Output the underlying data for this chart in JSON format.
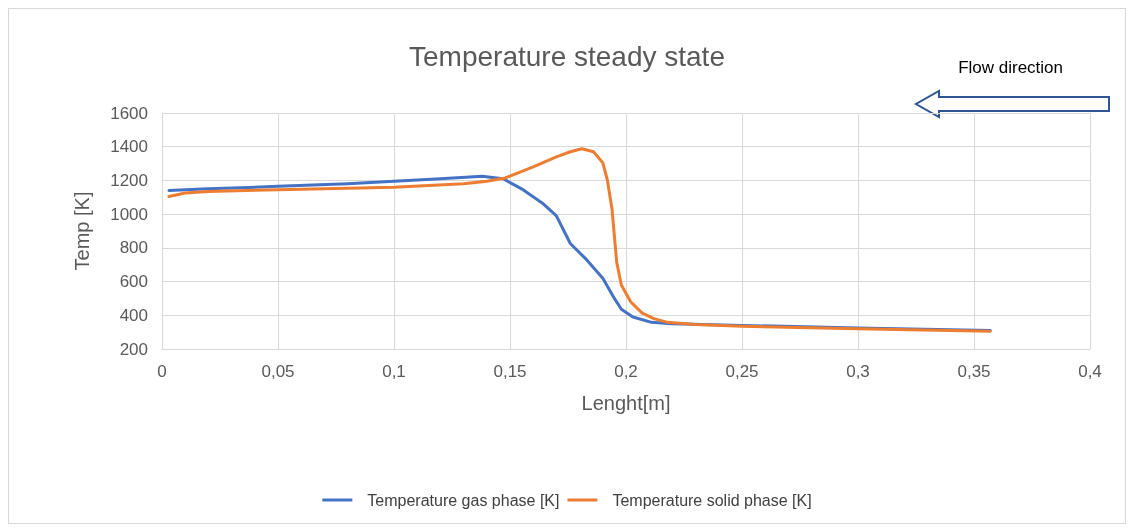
{
  "chart_data": {
    "type": "line",
    "title": "Temperature steady state",
    "xlabel": "Lenght[m]",
    "ylabel": "Temp [K]",
    "annotations": [
      "Flow direction"
    ],
    "xlim": [
      0,
      0.4
    ],
    "xticks": [
      0,
      {
        "value": 0.05,
        "label": "0,05"
      },
      {
        "value": 0.1,
        "label": "0,1"
      },
      {
        "value": 0.15,
        "label": "0,15"
      },
      {
        "value": 0.2,
        "label": "0,2"
      },
      {
        "value": 0.25,
        "label": "0,25"
      },
      {
        "value": 0.3,
        "label": "0,3"
      },
      {
        "value": 0.35,
        "label": "0,35"
      },
      {
        "value": 0.4,
        "label": "0,4"
      }
    ],
    "ylim": [
      200,
      1600
    ],
    "yticks": [
      200,
      400,
      600,
      800,
      1000,
      1200,
      1400,
      1600
    ],
    "grid": true,
    "legend": "bottom",
    "marker": "none",
    "line_style": "solid",
    "series": [
      {
        "name": "Temperature gas phase [K]",
        "color": "#4472c4",
        "x": [
          0.003,
          0.02,
          0.05,
          0.08,
          0.1,
          0.12,
          0.138,
          0.147,
          0.155,
          0.164,
          0.17,
          0.176,
          0.183,
          0.19,
          0.195,
          0.198,
          0.203,
          0.211,
          0.22,
          0.25,
          0.3,
          0.357
        ],
        "values": [
          1140,
          1150,
          1165,
          1180,
          1195,
          1210,
          1225,
          1210,
          1150,
          1065,
          990,
          826,
          730,
          620,
          500,
          436,
          390,
          358,
          350,
          340,
          325,
          310
        ]
      },
      {
        "name": "Temperature solid phase [K]",
        "color": "#ed7d31",
        "x": [
          0.003,
          0.01,
          0.02,
          0.05,
          0.1,
          0.13,
          0.14,
          0.148,
          0.16,
          0.17,
          0.176,
          0.181,
          0.186,
          0.19,
          0.192,
          0.194,
          0.196,
          0.198,
          0.202,
          0.207,
          0.212,
          0.218,
          0.23,
          0.25,
          0.3,
          0.357
        ],
        "values": [
          1105,
          1125,
          1135,
          1145,
          1160,
          1180,
          1195,
          1215,
          1280,
          1340,
          1370,
          1388,
          1370,
          1305,
          1200,
          1026,
          714,
          580,
          480,
          413,
          380,
          358,
          345,
          335,
          320,
          305
        ]
      }
    ]
  }
}
